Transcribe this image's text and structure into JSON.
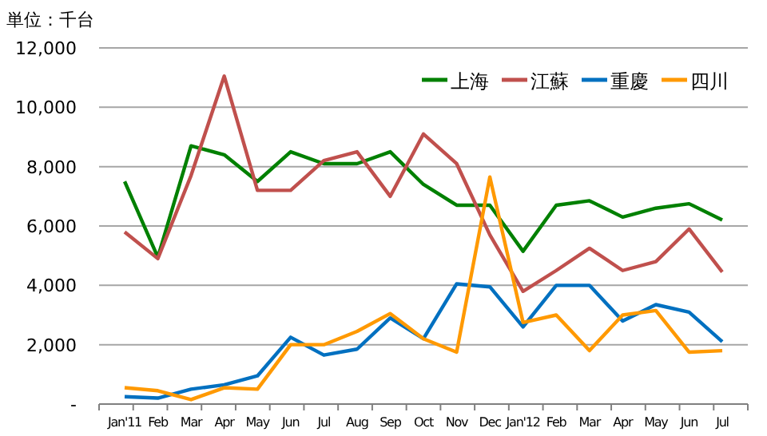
{
  "chart_data": {
    "type": "line",
    "ylabel": "単位：千台",
    "categories": [
      "Jan'11",
      "Feb",
      "Mar",
      "Apr",
      "May",
      "Jun",
      "Jul",
      "Aug",
      "Sep",
      "Oct",
      "Nov",
      "Dec",
      "Jan'12",
      "Feb",
      "Mar",
      "Apr",
      "May",
      "Jun",
      "Jul"
    ],
    "series": [
      {
        "name": "上海",
        "color": "#008000",
        "values": [
          7500,
          4950,
          8700,
          8400,
          7500,
          8500,
          8100,
          8100,
          8500,
          7400,
          6700,
          6700,
          5150,
          6700,
          6850,
          6300,
          6600,
          6750,
          6200
        ]
      },
      {
        "name": "江蘇",
        "color": "#c0504d",
        "values": [
          5800,
          4900,
          7700,
          11050,
          7200,
          7200,
          8200,
          8500,
          7000,
          9100,
          8100,
          5700,
          3800,
          4500,
          5250,
          4500,
          4800,
          5900,
          4450
        ]
      },
      {
        "name": "重慶",
        "color": "#0070c0",
        "values": [
          250,
          200,
          500,
          650,
          950,
          2250,
          1650,
          1850,
          2900,
          2200,
          4050,
          3950,
          2600,
          4000,
          4000,
          2800,
          3350,
          3100,
          2100
        ]
      },
      {
        "name": "四川",
        "color": "#ff9900",
        "values": [
          550,
          450,
          150,
          550,
          500,
          2000,
          2000,
          2450,
          3050,
          2200,
          1750,
          7650,
          2750,
          3000,
          1800,
          3000,
          3150,
          1750,
          1800
        ]
      }
    ],
    "ylim": [
      0,
      12000
    ],
    "yticks": [
      {
        "value": 0,
        "label": "-"
      },
      {
        "value": 2000,
        "label": "2,000"
      },
      {
        "value": 4000,
        "label": "4,000"
      },
      {
        "value": 6000,
        "label": "6,000"
      },
      {
        "value": 8000,
        "label": "8,000"
      },
      {
        "value": 10000,
        "label": "10,000"
      },
      {
        "value": 12000,
        "label": "12,000"
      }
    ],
    "grid": "y",
    "legend": "top right",
    "line_style": "solid"
  }
}
